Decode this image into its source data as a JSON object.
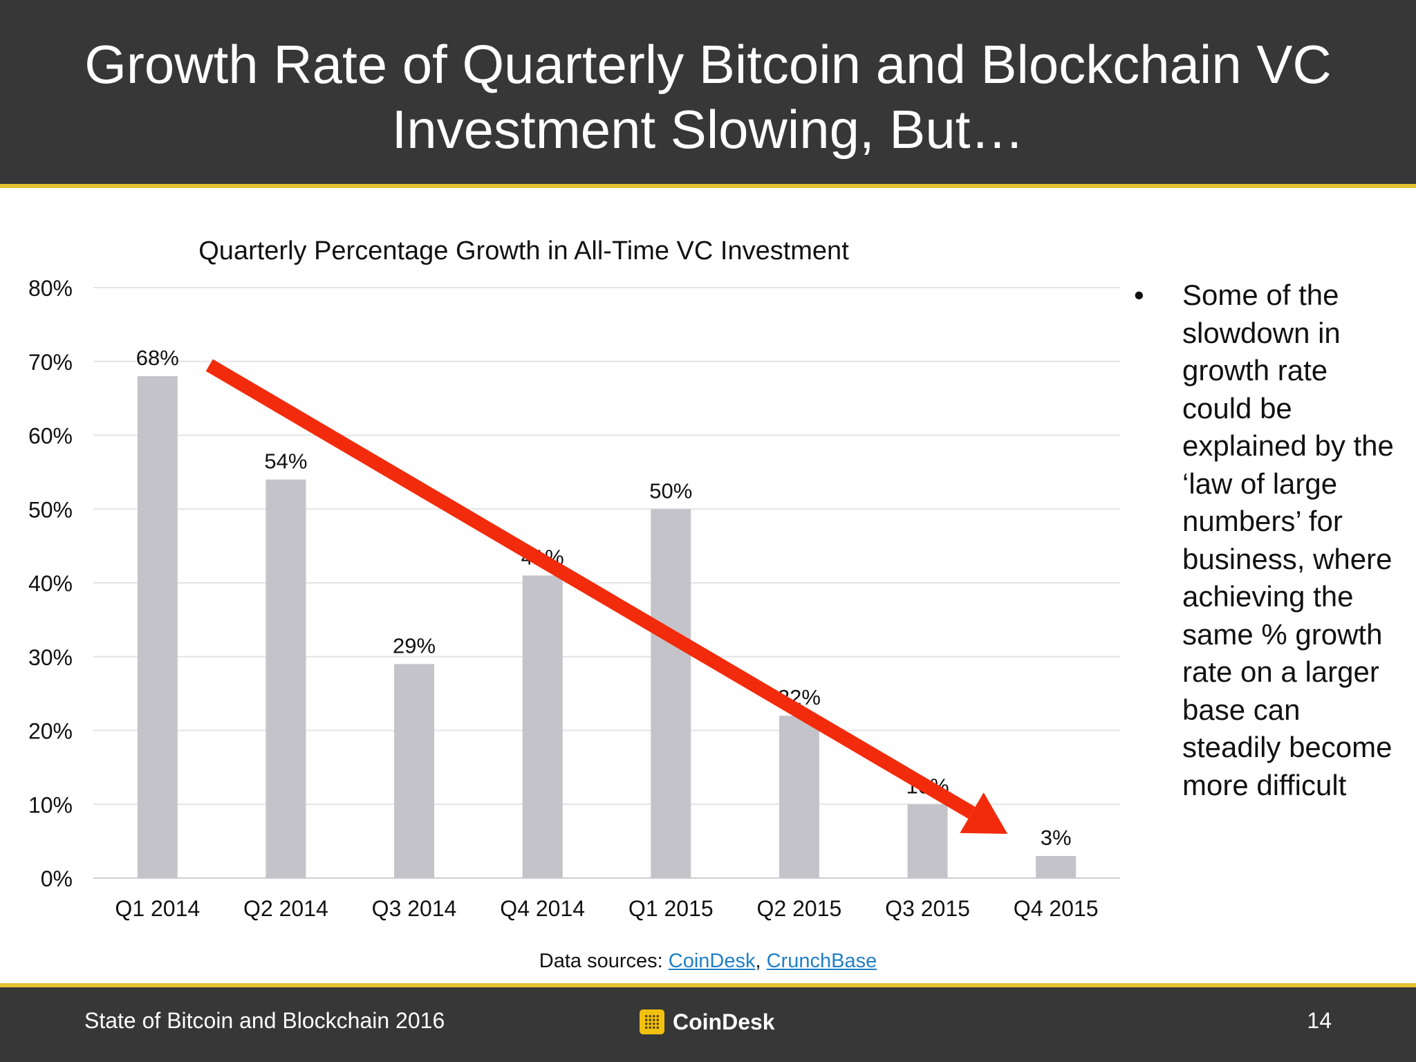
{
  "slide": {
    "title_line1": "Growth Rate of Quarterly Bitcoin and Blockchain VC",
    "title_line2": "Investment Slowing, But…"
  },
  "chart_data": {
    "type": "bar",
    "title": "Quarterly Percentage Growth in All-Time VC Investment",
    "categories": [
      "Q1 2014",
      "Q2 2014",
      "Q3 2014",
      "Q4 2014",
      "Q1 2015",
      "Q2 2015",
      "Q3 2015",
      "Q4 2015"
    ],
    "values": [
      68,
      54,
      29,
      41,
      50,
      22,
      10,
      3
    ],
    "data_labels": [
      "68%",
      "54%",
      "29%",
      "41%",
      "50%",
      "22%",
      "10%",
      "3%"
    ],
    "y_ticks": [
      "0%",
      "10%",
      "20%",
      "30%",
      "40%",
      "50%",
      "60%",
      "70%",
      "80%"
    ],
    "ylim": [
      0,
      80
    ],
    "grid": true,
    "bar_color": "#c5c3ca",
    "annotation": {
      "type": "trend-arrow",
      "color": "#f22b0c",
      "from": {
        "category": "Q1 2014",
        "value": 69.5
      },
      "to": {
        "category": "Q4 2015",
        "value": 6
      }
    }
  },
  "sidebar": {
    "bullet": "•",
    "text": "Some of the slowdown in growth rate could be explained by the ‘law of large numbers’ for business, where achieving the same % growth rate on a larger base can steadily become more difficult"
  },
  "sources": {
    "prefix": "Data sources: ",
    "link1": "CoinDesk",
    "separator": ", ",
    "link2": "CrunchBase"
  },
  "footer": {
    "left_text": "State of Bitcoin and Blockchain 2016",
    "logo_text": "CoinDesk",
    "page_number": "14"
  },
  "colors": {
    "header_bg": "#373737",
    "accent_rule": "#e2c230",
    "arrow": "#f22b0c",
    "link": "#1f7fc9"
  }
}
